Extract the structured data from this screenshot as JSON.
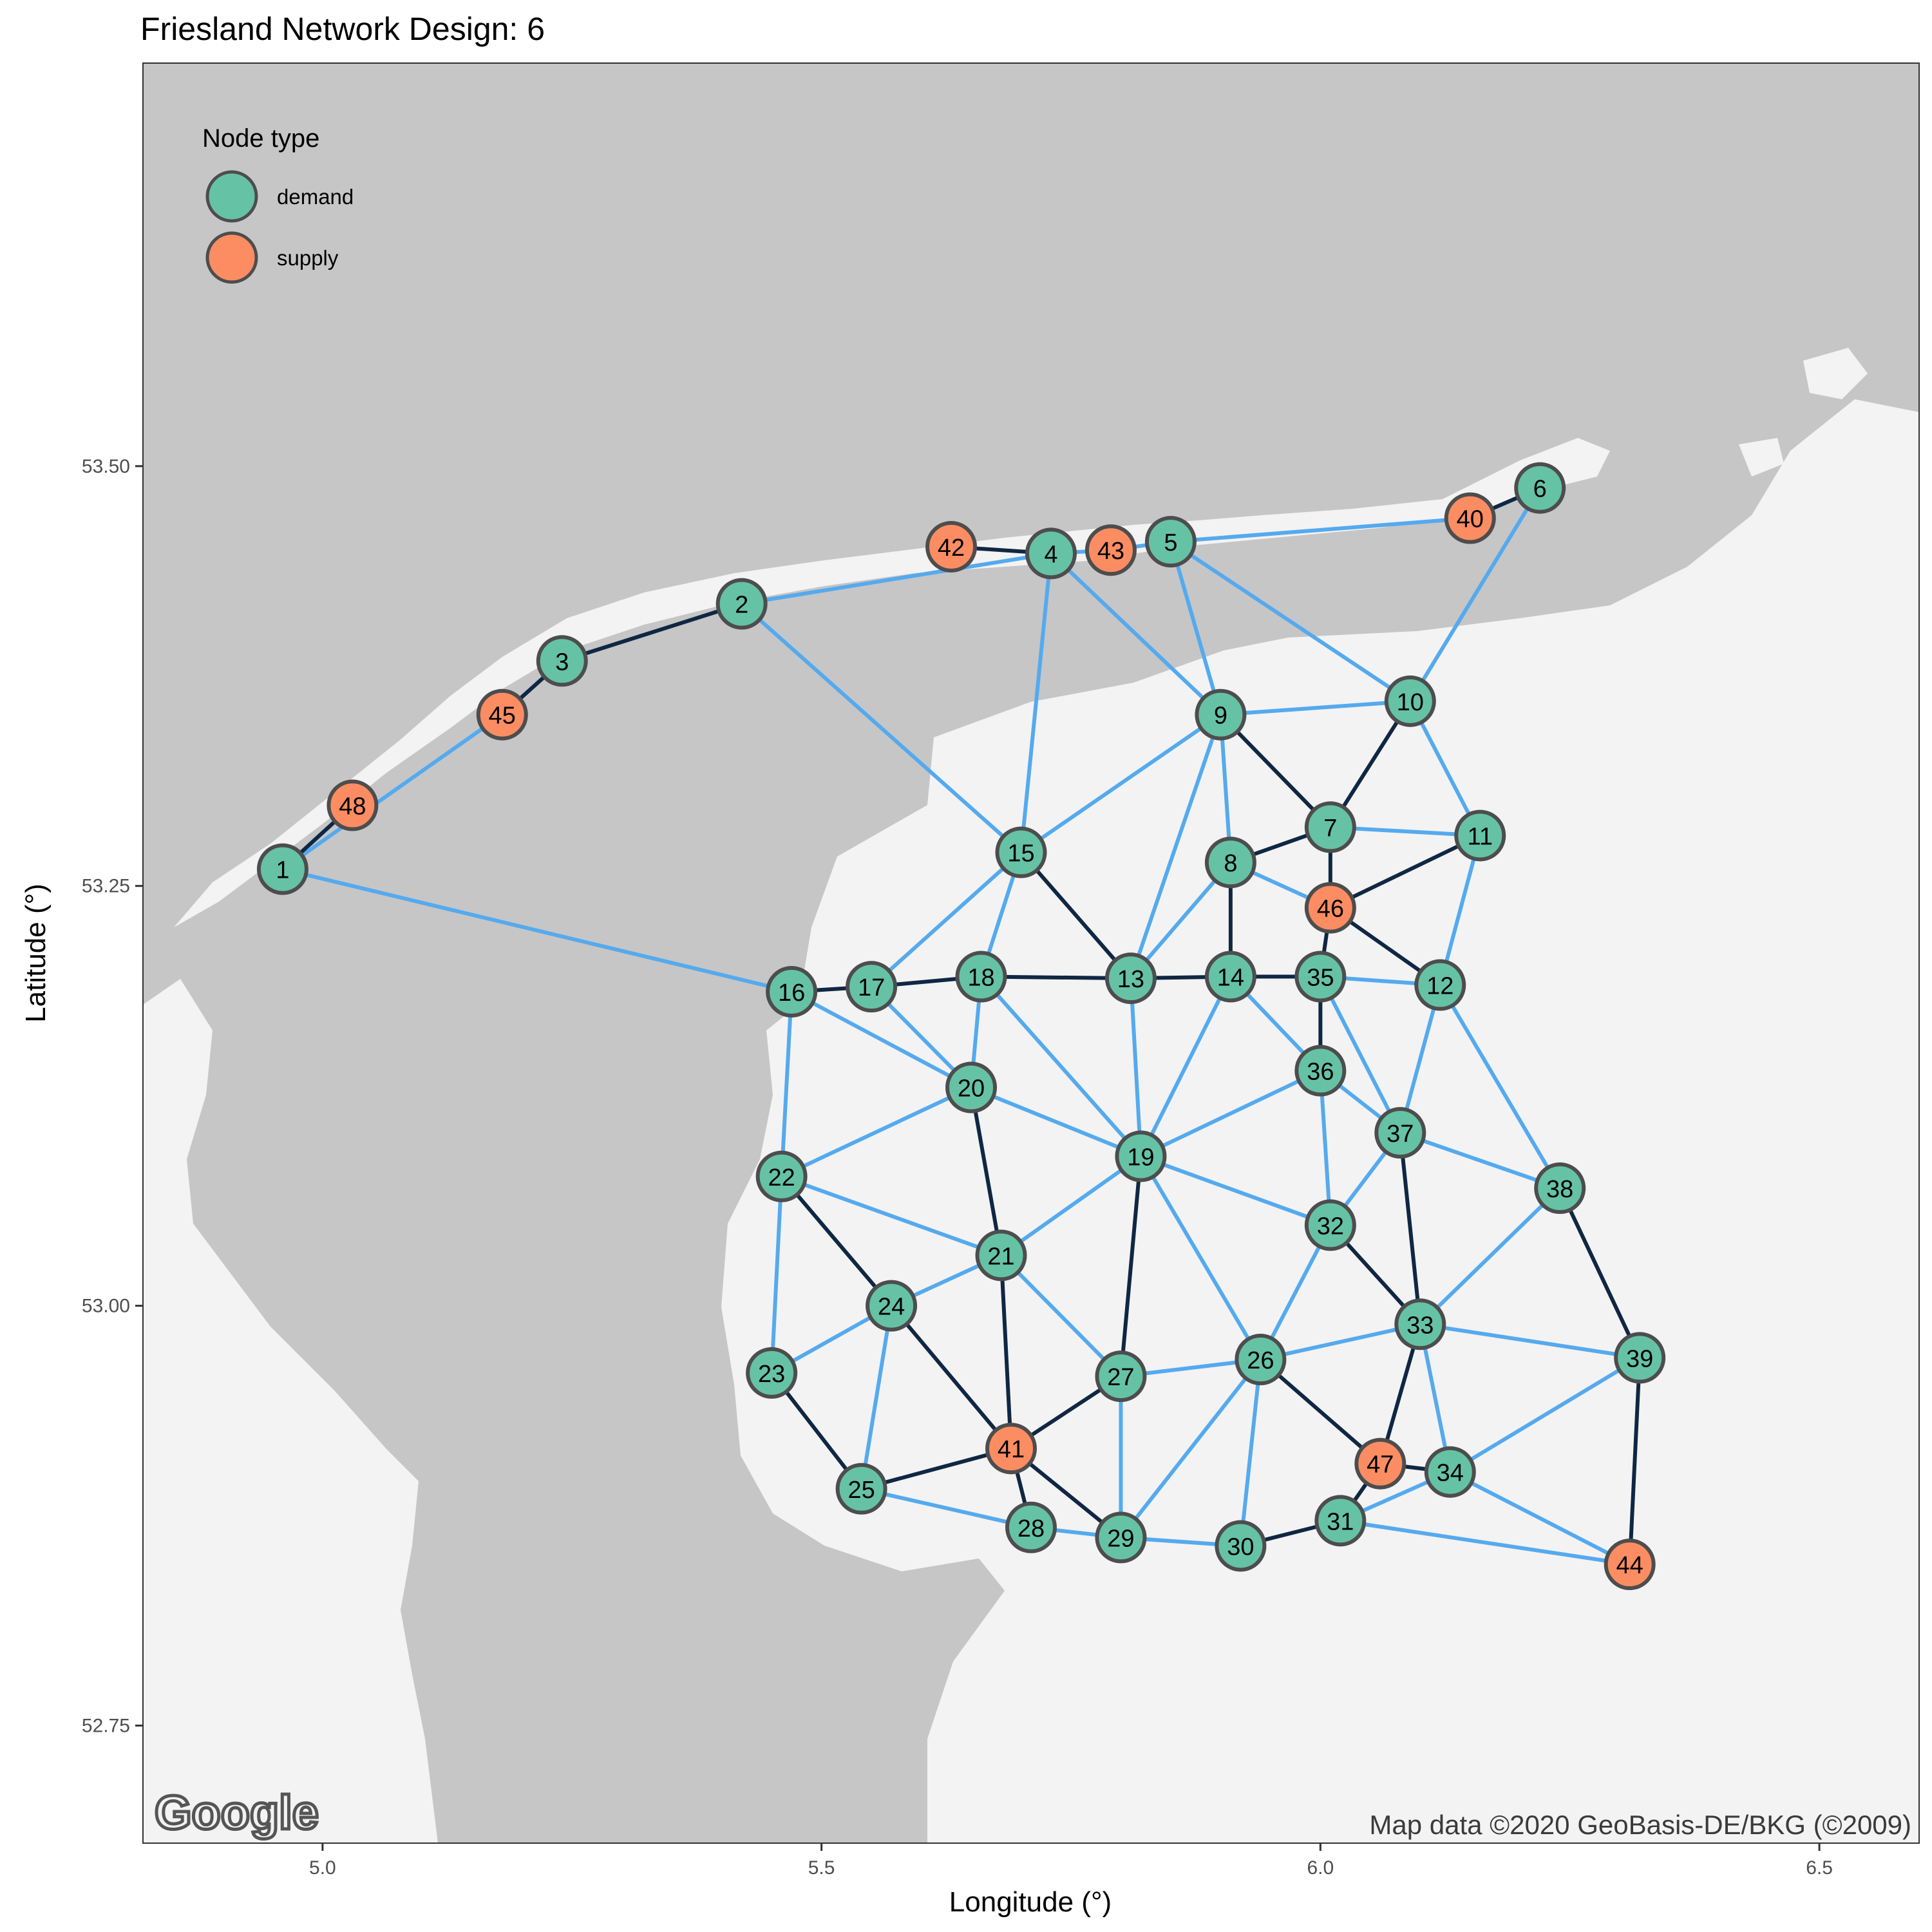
{
  "title": "Friesland Network Design: 6",
  "attribution": "Map data ©2020 GeoBasis-DE/BKG (©2009)",
  "logo_text": "Google",
  "colors": {
    "demand": "#66c2a5",
    "supply": "#fc8d62",
    "water": "#c6c6c6",
    "land": "#f3f3f3",
    "edge_light": "#55aaee",
    "edge_dark": "#0f2743"
  },
  "chart_data": {
    "type": "network-map",
    "xlabel": "Longitude (°)",
    "ylabel": "Latitude (°)",
    "xlim": [
      4.82,
      6.6
    ],
    "ylim": [
      52.68,
      53.74
    ],
    "x_ticks": [
      5.0,
      5.5,
      6.0,
      6.5
    ],
    "x_tick_labels": [
      "5.0",
      "5.5",
      "6.0",
      "6.5"
    ],
    "y_ticks": [
      52.75,
      53.0,
      53.25,
      53.5
    ],
    "y_tick_labels": [
      "52.75",
      "53.00",
      "53.25",
      "53.50"
    ],
    "legend": {
      "title": "Node type",
      "position": "top-left",
      "entries": [
        {
          "label": "demand",
          "type": "demand"
        },
        {
          "label": "supply",
          "type": "supply"
        }
      ]
    },
    "nodes": [
      {
        "id": "1",
        "lon": 4.96,
        "lat": 53.26,
        "type": "demand"
      },
      {
        "id": "2",
        "lon": 5.42,
        "lat": 53.418,
        "type": "demand"
      },
      {
        "id": "3",
        "lon": 5.24,
        "lat": 53.384,
        "type": "demand"
      },
      {
        "id": "4",
        "lon": 5.73,
        "lat": 53.448,
        "type": "demand"
      },
      {
        "id": "5",
        "lon": 5.85,
        "lat": 53.455,
        "type": "demand"
      },
      {
        "id": "6",
        "lon": 6.22,
        "lat": 53.487,
        "type": "demand"
      },
      {
        "id": "7",
        "lon": 6.01,
        "lat": 53.285,
        "type": "demand"
      },
      {
        "id": "8",
        "lon": 5.91,
        "lat": 53.264,
        "type": "demand"
      },
      {
        "id": "9",
        "lon": 5.9,
        "lat": 53.352,
        "type": "demand"
      },
      {
        "id": "10",
        "lon": 6.09,
        "lat": 53.36,
        "type": "demand"
      },
      {
        "id": "11",
        "lon": 6.16,
        "lat": 53.28,
        "type": "demand"
      },
      {
        "id": "12",
        "lon": 6.12,
        "lat": 53.191,
        "type": "demand"
      },
      {
        "id": "13",
        "lon": 5.81,
        "lat": 53.195,
        "type": "demand"
      },
      {
        "id": "14",
        "lon": 5.91,
        "lat": 53.196,
        "type": "demand"
      },
      {
        "id": "15",
        "lon": 5.7,
        "lat": 53.27,
        "type": "demand"
      },
      {
        "id": "16",
        "lon": 5.47,
        "lat": 53.187,
        "type": "demand"
      },
      {
        "id": "17",
        "lon": 5.55,
        "lat": 53.19,
        "type": "demand"
      },
      {
        "id": "18",
        "lon": 5.66,
        "lat": 53.196,
        "type": "demand"
      },
      {
        "id": "19",
        "lon": 5.82,
        "lat": 53.089,
        "type": "demand"
      },
      {
        "id": "20",
        "lon": 5.65,
        "lat": 53.13,
        "type": "demand"
      },
      {
        "id": "21",
        "lon": 5.68,
        "lat": 53.03,
        "type": "demand"
      },
      {
        "id": "22",
        "lon": 5.46,
        "lat": 53.077,
        "type": "demand"
      },
      {
        "id": "23",
        "lon": 5.45,
        "lat": 52.96,
        "type": "demand"
      },
      {
        "id": "24",
        "lon": 5.57,
        "lat": 53.0,
        "type": "demand"
      },
      {
        "id": "25",
        "lon": 5.54,
        "lat": 52.891,
        "type": "demand"
      },
      {
        "id": "26",
        "lon": 5.94,
        "lat": 52.968,
        "type": "demand"
      },
      {
        "id": "27",
        "lon": 5.8,
        "lat": 52.958,
        "type": "demand"
      },
      {
        "id": "28",
        "lon": 5.71,
        "lat": 52.868,
        "type": "demand"
      },
      {
        "id": "29",
        "lon": 5.8,
        "lat": 52.862,
        "type": "demand"
      },
      {
        "id": "30",
        "lon": 5.92,
        "lat": 52.857,
        "type": "demand"
      },
      {
        "id": "31",
        "lon": 6.02,
        "lat": 52.872,
        "type": "demand"
      },
      {
        "id": "32",
        "lon": 6.01,
        "lat": 53.048,
        "type": "demand"
      },
      {
        "id": "33",
        "lon": 6.1,
        "lat": 52.989,
        "type": "demand"
      },
      {
        "id": "34",
        "lon": 6.13,
        "lat": 52.901,
        "type": "demand"
      },
      {
        "id": "35",
        "lon": 6.0,
        "lat": 53.196,
        "type": "demand"
      },
      {
        "id": "36",
        "lon": 6.0,
        "lat": 53.14,
        "type": "demand"
      },
      {
        "id": "37",
        "lon": 6.08,
        "lat": 53.103,
        "type": "demand"
      },
      {
        "id": "38",
        "lon": 6.24,
        "lat": 53.07,
        "type": "demand"
      },
      {
        "id": "39",
        "lon": 6.32,
        "lat": 52.969,
        "type": "demand"
      },
      {
        "id": "40",
        "lon": 6.15,
        "lat": 53.469,
        "type": "supply"
      },
      {
        "id": "41",
        "lon": 5.69,
        "lat": 52.915,
        "type": "supply"
      },
      {
        "id": "42",
        "lon": 5.63,
        "lat": 53.452,
        "type": "supply"
      },
      {
        "id": "43",
        "lon": 5.79,
        "lat": 53.45,
        "type": "supply"
      },
      {
        "id": "44",
        "lon": 6.31,
        "lat": 52.846,
        "type": "supply"
      },
      {
        "id": "45",
        "lon": 5.18,
        "lat": 53.352,
        "type": "supply"
      },
      {
        "id": "46",
        "lon": 6.01,
        "lat": 53.237,
        "type": "supply"
      },
      {
        "id": "47",
        "lon": 6.06,
        "lat": 52.906,
        "type": "supply"
      },
      {
        "id": "48",
        "lon": 5.03,
        "lat": 53.298,
        "type": "supply"
      }
    ],
    "edges_light": [
      [
        "1",
        "45"
      ],
      [
        "1",
        "48"
      ],
      [
        "45",
        "3"
      ],
      [
        "2",
        "4"
      ],
      [
        "4",
        "43"
      ],
      [
        "43",
        "5"
      ],
      [
        "5",
        "40"
      ],
      [
        "40",
        "6"
      ],
      [
        "1",
        "16"
      ],
      [
        "2",
        "15"
      ],
      [
        "4",
        "15"
      ],
      [
        "4",
        "9"
      ],
      [
        "5",
        "9"
      ],
      [
        "5",
        "10"
      ],
      [
        "10",
        "6"
      ],
      [
        "9",
        "15"
      ],
      [
        "9",
        "10"
      ],
      [
        "9",
        "8"
      ],
      [
        "9",
        "13"
      ],
      [
        "10",
        "11"
      ],
      [
        "7",
        "11"
      ],
      [
        "8",
        "46"
      ],
      [
        "8",
        "13"
      ],
      [
        "11",
        "12"
      ],
      [
        "15",
        "17"
      ],
      [
        "15",
        "18"
      ],
      [
        "16",
        "22"
      ],
      [
        "16",
        "20"
      ],
      [
        "17",
        "20"
      ],
      [
        "18",
        "20"
      ],
      [
        "18",
        "19"
      ],
      [
        "14",
        "19"
      ],
      [
        "14",
        "36"
      ],
      [
        "35",
        "12"
      ],
      [
        "35",
        "37"
      ],
      [
        "13",
        "19"
      ],
      [
        "12",
        "37"
      ],
      [
        "12",
        "38"
      ],
      [
        "20",
        "22"
      ],
      [
        "20",
        "19"
      ],
      [
        "36",
        "37"
      ],
      [
        "36",
        "32"
      ],
      [
        "36",
        "19"
      ],
      [
        "19",
        "32"
      ],
      [
        "19",
        "21"
      ],
      [
        "19",
        "26"
      ],
      [
        "37",
        "32"
      ],
      [
        "37",
        "38"
      ],
      [
        "22",
        "21"
      ],
      [
        "22",
        "23"
      ],
      [
        "21",
        "24"
      ],
      [
        "21",
        "27"
      ],
      [
        "24",
        "23"
      ],
      [
        "24",
        "25"
      ],
      [
        "38",
        "33"
      ],
      [
        "32",
        "26"
      ],
      [
        "33",
        "26"
      ],
      [
        "33",
        "39"
      ],
      [
        "33",
        "34"
      ],
      [
        "39",
        "34"
      ],
      [
        "27",
        "26"
      ],
      [
        "27",
        "29"
      ],
      [
        "26",
        "29"
      ],
      [
        "26",
        "30"
      ],
      [
        "25",
        "28"
      ],
      [
        "28",
        "29"
      ],
      [
        "29",
        "30"
      ],
      [
        "31",
        "44"
      ],
      [
        "34",
        "44"
      ],
      [
        "34",
        "31"
      ]
    ],
    "edges_dark": [
      [
        "1",
        "48"
      ],
      [
        "45",
        "3"
      ],
      [
        "3",
        "2"
      ],
      [
        "42",
        "4"
      ],
      [
        "40",
        "6"
      ],
      [
        "9",
        "7"
      ],
      [
        "7",
        "10"
      ],
      [
        "7",
        "8"
      ],
      [
        "7",
        "46"
      ],
      [
        "46",
        "11"
      ],
      [
        "46",
        "12"
      ],
      [
        "46",
        "35"
      ],
      [
        "8",
        "14"
      ],
      [
        "15",
        "13"
      ],
      [
        "16",
        "17"
      ],
      [
        "17",
        "18"
      ],
      [
        "18",
        "13"
      ],
      [
        "13",
        "14"
      ],
      [
        "14",
        "35"
      ],
      [
        "35",
        "36"
      ],
      [
        "20",
        "21"
      ],
      [
        "22",
        "24"
      ],
      [
        "19",
        "27"
      ],
      [
        "32",
        "33"
      ],
      [
        "37",
        "33"
      ],
      [
        "38",
        "39"
      ],
      [
        "39",
        "44"
      ],
      [
        "21",
        "41"
      ],
      [
        "24",
        "41"
      ],
      [
        "23",
        "25"
      ],
      [
        "25",
        "41"
      ],
      [
        "41",
        "27"
      ],
      [
        "41",
        "28"
      ],
      [
        "41",
        "29"
      ],
      [
        "26",
        "47"
      ],
      [
        "33",
        "47"
      ],
      [
        "47",
        "34"
      ],
      [
        "47",
        "31"
      ],
      [
        "30",
        "31"
      ]
    ]
  }
}
